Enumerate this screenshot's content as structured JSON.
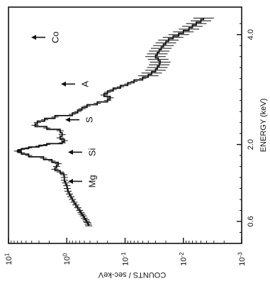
{
  "chart_data": {
    "type": "line",
    "orientation": "rotated-90-ccw",
    "xlabel": "ENERGY (keV)",
    "ylabel": "COUNTS / sec-keV",
    "x_scale": "linear",
    "y_scale": "log",
    "xlim": [
      0.2,
      4.5
    ],
    "ylim": [
      0.001,
      10
    ],
    "x_ticks": [
      {
        "value": 0.6,
        "label": "0.6"
      },
      {
        "value": 2.0,
        "label": "2.0"
      },
      {
        "value": 4.0,
        "label": "4.0"
      }
    ],
    "y_ticks": [
      {
        "value": 10,
        "base": "10",
        "exp": "1"
      },
      {
        "value": 1,
        "base": "10",
        "exp": "0"
      },
      {
        "value": 0.1,
        "base": "10",
        "exp": "-1"
      },
      {
        "value": 0.01,
        "base": "10",
        "exp": "-2"
      },
      {
        "value": 0.001,
        "base": "10",
        "exp": "-3"
      }
    ],
    "grid": false,
    "series": [
      {
        "x": [
          0.52,
          0.55,
          0.58,
          0.6,
          0.63,
          0.66,
          0.7,
          0.73,
          0.76,
          0.8,
          0.85,
          0.9,
          0.95,
          1.0,
          1.05,
          1.1,
          1.15,
          1.2,
          1.25,
          1.3,
          1.35,
          1.4,
          1.45,
          1.5,
          1.55,
          1.6,
          1.65,
          1.7,
          1.75,
          1.8,
          1.85,
          1.88,
          1.91,
          1.94,
          1.97,
          2.0,
          2.03,
          2.07,
          2.12,
          2.18,
          2.25,
          2.3,
          2.35,
          2.4,
          2.45,
          2.5,
          2.55,
          2.6,
          2.65,
          2.7,
          2.75,
          2.8,
          2.85,
          2.9,
          2.95,
          3.0,
          3.05,
          3.1,
          3.15,
          3.2,
          3.25,
          3.3,
          3.35,
          3.4,
          3.45,
          3.5,
          3.55,
          3.6,
          3.65,
          3.7,
          3.75,
          3.8,
          3.85,
          3.9,
          3.95,
          4.0,
          4.05,
          4.1,
          4.15,
          4.2,
          4.25,
          4.3
        ],
        "y": [
          0.42,
          0.43,
          0.44,
          0.46,
          0.47,
          0.5,
          0.52,
          0.55,
          0.57,
          0.6,
          0.65,
          0.7,
          0.75,
          0.8,
          0.85,
          0.9,
          0.95,
          0.98,
          1.0,
          1.05,
          1.1,
          1.1,
          1.12,
          1.3,
          1.6,
          1.5,
          1.4,
          1.8,
          2.5,
          4.5,
          6.0,
          7.0,
          6.0,
          4.5,
          3.0,
          2.2,
          1.2,
          1.1,
          1.3,
          1.2,
          1.3,
          2.2,
          3.5,
          3.2,
          2.4,
          1.6,
          0.8,
          0.65,
          0.55,
          0.45,
          0.3,
          0.2,
          0.18,
          0.23,
          0.2,
          0.16,
          0.12,
          0.09,
          0.07,
          0.05,
          0.04,
          0.035,
          0.03,
          0.028,
          0.026,
          0.025,
          0.027,
          0.03,
          0.028,
          0.026,
          0.024,
          0.022,
          0.02,
          0.018,
          0.015,
          0.012,
          0.01,
          0.008,
          0.007,
          0.006,
          0.005,
          0.0045
        ]
      }
    ],
    "annotations": [
      {
        "label": "Mg",
        "energy": 1.33
      },
      {
        "label": "Si",
        "energy": 1.86
      },
      {
        "label": "S",
        "energy": 2.45
      },
      {
        "label": "A",
        "energy": 3.1
      },
      {
        "label": "Co",
        "energy": 3.95
      }
    ]
  }
}
